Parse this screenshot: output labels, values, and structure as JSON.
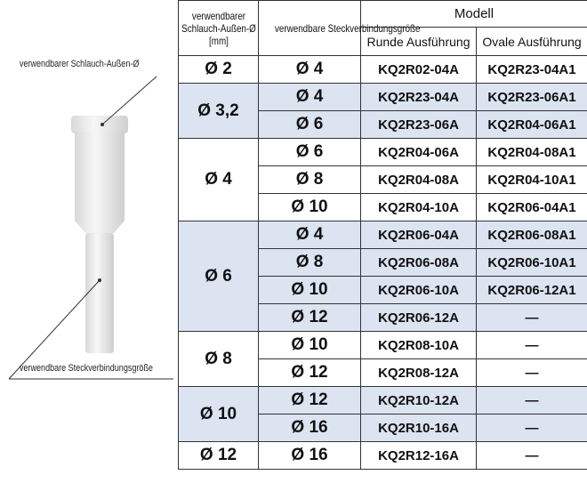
{
  "diagram": {
    "tube_label": "verwendbarer Schlauch-Außen-Ø",
    "connection_label": "verwendbare Steckverbindungsgröße"
  },
  "table": {
    "header": {
      "tube": "verwendbarer Schlauch-Außen-Ø [mm]",
      "connection": "verwendbare Steckverbindungsgröße",
      "model": "Modell",
      "round": "Runde Ausführung",
      "oval": "Ovale Ausführung"
    },
    "groups": [
      {
        "size": "Ø 2",
        "rows": [
          [
            "Ø 4",
            "KQ2R02-04A",
            "KQ2R23-04A1"
          ]
        ]
      },
      {
        "size": "Ø 3,2",
        "rows": [
          [
            "Ø 4",
            "KQ2R23-04A",
            "KQ2R23-06A1"
          ],
          [
            "Ø 6",
            "KQ2R23-06A",
            "KQ2R04-06A1"
          ]
        ]
      },
      {
        "size": "Ø 4",
        "rows": [
          [
            "Ø 6",
            "KQ2R04-06A",
            "KQ2R04-08A1"
          ],
          [
            "Ø 8",
            "KQ2R04-08A",
            "KQ2R04-10A1"
          ],
          [
            "Ø 10",
            "KQ2R04-10A",
            "KQ2R06-04A1"
          ]
        ]
      },
      {
        "size": "Ø 6",
        "rows": [
          [
            "Ø 4",
            "KQ2R06-04A",
            "KQ2R06-08A1"
          ],
          [
            "Ø 8",
            "KQ2R06-08A",
            "KQ2R06-10A1"
          ],
          [
            "Ø 10",
            "KQ2R06-10A",
            "KQ2R06-12A1"
          ],
          [
            "Ø 12",
            "KQ2R06-12A",
            "—"
          ]
        ]
      },
      {
        "size": "Ø 8",
        "rows": [
          [
            "Ø 10",
            "KQ2R08-10A",
            "—"
          ],
          [
            "Ø 12",
            "KQ2R08-12A",
            "—"
          ]
        ]
      },
      {
        "size": "Ø 10",
        "rows": [
          [
            "Ø 12",
            "KQ2R10-12A",
            "—"
          ],
          [
            "Ø 16",
            "KQ2R10-16A",
            "—"
          ]
        ]
      },
      {
        "size": "Ø 12",
        "rows": [
          [
            "Ø 16",
            "KQ2R12-16A",
            "—"
          ]
        ]
      }
    ]
  }
}
